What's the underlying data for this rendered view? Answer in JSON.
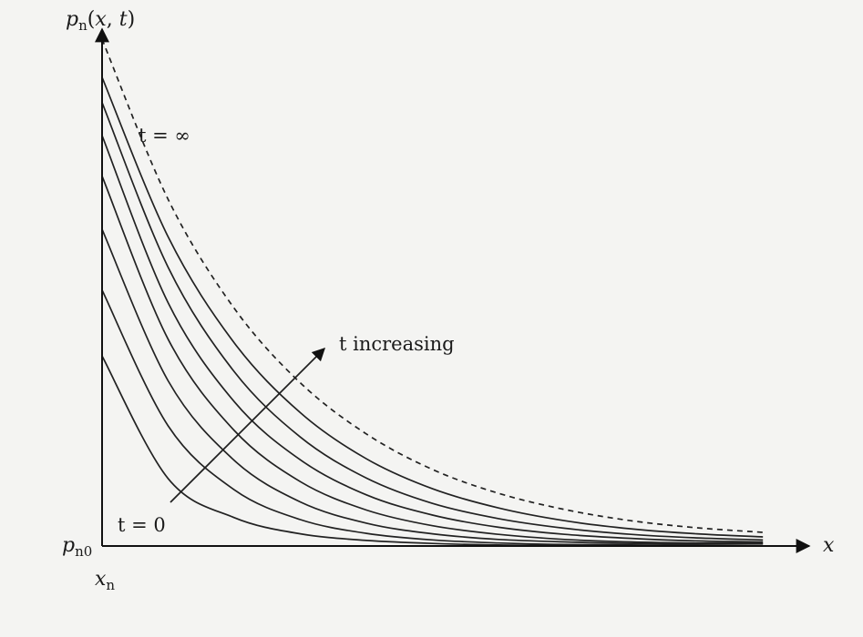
{
  "chart_data": {
    "type": "line",
    "ylabel": "p_n(x, t)",
    "xlabel": "x",
    "x_origin_label": "x_n",
    "y_origin_label": "p_n0",
    "x": [
      0,
      0.1,
      0.2,
      0.3,
      0.4,
      0.5,
      0.6,
      0.7,
      0.8,
      0.9,
      1.0
    ],
    "xlim": [
      0,
      1.07
    ],
    "ylim": [
      0,
      1.02
    ],
    "series": [
      {
        "values": [
          0.375,
          0.133,
          0.056,
          0.024,
          0.011,
          0.005,
          0.002,
          0.001,
          0,
          0,
          0
        ]
      },
      {
        "values": [
          0.505,
          0.237,
          0.111,
          0.052,
          0.025,
          0.012,
          0.006,
          0.003,
          0.002,
          0.001,
          0
        ]
      },
      {
        "values": [
          0.625,
          0.326,
          0.169,
          0.087,
          0.045,
          0.024,
          0.013,
          0.008,
          0.005,
          0.004,
          0.004
        ]
      },
      {
        "values": [
          0.73,
          0.408,
          0.228,
          0.127,
          0.071,
          0.04,
          0.023,
          0.013,
          0.008,
          0.006,
          0.006
        ]
      },
      {
        "values": [
          0.81,
          0.48,
          0.285,
          0.17,
          0.101,
          0.061,
          0.037,
          0.023,
          0.015,
          0.01,
          0.008
        ]
      },
      {
        "values": [
          0.875,
          0.55,
          0.344,
          0.215,
          0.134,
          0.084,
          0.054,
          0.035,
          0.023,
          0.016,
          0.012
        ]
      },
      {
        "values": [
          0.925,
          0.61,
          0.401,
          0.263,
          0.172,
          0.113,
          0.075,
          0.05,
          0.034,
          0.024,
          0.018
        ]
      },
      {
        "values": [
          1.0,
          0.684,
          0.469,
          0.322,
          0.221,
          0.151,
          0.104,
          0.072,
          0.05,
          0.036,
          0.027
        ],
        "dashed": true
      }
    ],
    "annotations": [
      {
        "text": "t = ∞"
      },
      {
        "text": "t increasing"
      },
      {
        "text": "t = 0"
      }
    ],
    "colors": {
      "curve": "#222222",
      "axis": "#111111",
      "background": "#f4f4f2"
    }
  }
}
